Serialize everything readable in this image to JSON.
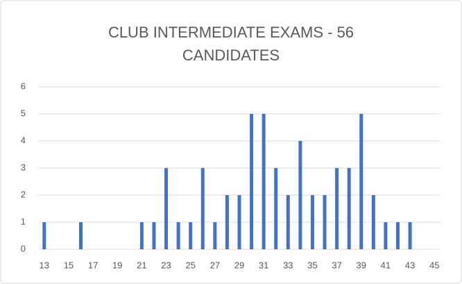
{
  "chart_data": {
    "type": "bar",
    "title": "CLUB INTERMEDIATE EXAMS - 56 CANDIDATES",
    "x": [
      13,
      14,
      15,
      16,
      17,
      18,
      19,
      20,
      21,
      22,
      23,
      24,
      25,
      26,
      27,
      28,
      29,
      30,
      31,
      32,
      33,
      34,
      35,
      36,
      37,
      38,
      39,
      40,
      41,
      42,
      43,
      44,
      45
    ],
    "values": [
      1,
      0,
      0,
      1,
      0,
      0,
      0,
      0,
      1,
      1,
      3,
      1,
      1,
      3,
      1,
      2,
      2,
      5,
      5,
      3,
      2,
      4,
      2,
      2,
      3,
      3,
      5,
      2,
      1,
      1,
      1,
      0,
      0
    ],
    "color": "#4472c4",
    "xlim": [
      12.5,
      45.5
    ],
    "xticks": [
      13,
      15,
      17,
      19,
      21,
      23,
      25,
      27,
      29,
      31,
      33,
      35,
      37,
      39,
      41,
      43,
      45
    ],
    "ylim": [
      0,
      6
    ],
    "yticks": [
      0,
      1,
      2,
      3,
      4,
      5,
      6
    ],
    "grid": true
  }
}
